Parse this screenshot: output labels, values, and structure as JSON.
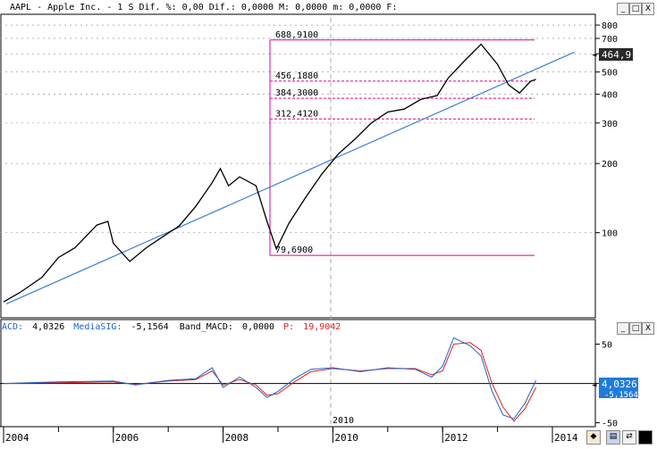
{
  "header": {
    "title": "AAPL - Apple Inc. -  1 S Dif. %: 0,00 Dif.: 0,0000 M: 0,0000 m: 0,0000 F:",
    "window_buttons": [
      "_",
      "□",
      "X"
    ]
  },
  "colors": {
    "price": "#000000",
    "trendline": "#3b7fd4",
    "levels": "#e0008a",
    "macd_blue": "#1f63c8",
    "macd_red": "#e02020",
    "grid": "#9a9a9a",
    "badge_bg": "#1f7bd8"
  },
  "chart_data": [
    {
      "type": "line",
      "title": "AAPL - Apple Inc.",
      "y_scale": "log",
      "ylim": [
        45,
        860
      ],
      "y_ticks": [
        "800",
        "700",
        "600",
        "500",
        "400",
        "300",
        "200",
        "100"
      ],
      "x_ticks": [
        "2004",
        "2006",
        "2008",
        "2010",
        "2012",
        "2014"
      ],
      "last_value_label": "464,9",
      "series": [
        {
          "x": [
            2004.0,
            2004.3,
            2004.7,
            2005.0,
            2005.3,
            2005.7,
            2005.9,
            2006.0,
            2006.3,
            2006.6,
            2006.9,
            2007.2,
            2007.5,
            2007.8,
            2007.95,
            2008.1,
            2008.3,
            2008.6,
            2008.8,
            2008.97,
            2009.2,
            2009.5,
            2009.8,
            2010.1,
            2010.4,
            2010.7,
            2011.0,
            2011.3,
            2011.6,
            2011.9,
            2012.1,
            2012.4,
            2012.7,
            2013.0,
            2013.2,
            2013.4,
            2013.6,
            2013.7
          ],
          "y": [
            50,
            55,
            64,
            78,
            86,
            108,
            112,
            90,
            75,
            86,
            96,
            107,
            130,
            165,
            190,
            160,
            175,
            160,
            112,
            85,
            110,
            142,
            180,
            220,
            255,
            300,
            335,
            345,
            380,
            395,
            470,
            560,
            660,
            540,
            440,
            405,
            455,
            465
          ]
        }
      ]
    },
    {
      "type": "line",
      "title": "MACD",
      "ylim": [
        -55,
        62
      ],
      "y_ticks": [
        "50",
        "0",
        "-50"
      ],
      "x_ticks": [
        "2004",
        "2006",
        "2008",
        "2010",
        "2012",
        "2014"
      ],
      "readout": {
        "macd_label": "ACD:",
        "macd_value": "4,0326",
        "signal_label": "MediaSIG:",
        "signal_value": "-5,1564",
        "band_label": "Band_MACD:",
        "band_value": "0,0000",
        "p_label": "P:",
        "p_value": "19,9042"
      },
      "badge_value": "4,0326",
      "badge_value_2": "-5,1564",
      "series": [
        {
          "x": [
            2004.0,
            2005.0,
            2006.0,
            2006.4,
            2007.0,
            2007.5,
            2007.8,
            2008.0,
            2008.3,
            2008.6,
            2008.8,
            2009.0,
            2009.3,
            2009.6,
            2010.0,
            2010.5,
            2011.0,
            2011.5,
            2011.8,
            2012.0,
            2012.2,
            2012.5,
            2012.7,
            2012.9,
            2013.1,
            2013.3,
            2013.5,
            2013.7
          ],
          "y": [
            0,
            2,
            3,
            -2,
            4,
            6,
            20,
            -5,
            8,
            -5,
            -18,
            -10,
            6,
            18,
            20,
            15,
            20,
            18,
            8,
            22,
            58,
            48,
            35,
            -10,
            -40,
            -45,
            -25,
            4
          ]
        },
        {
          "x": [
            2004.0,
            2005.0,
            2006.0,
            2006.4,
            2007.0,
            2007.5,
            2007.8,
            2008.0,
            2008.3,
            2008.6,
            2008.8,
            2009.0,
            2009.3,
            2009.6,
            2010.0,
            2010.5,
            2011.0,
            2011.5,
            2011.8,
            2012.0,
            2012.2,
            2012.5,
            2012.7,
            2012.9,
            2013.1,
            2013.3,
            2013.5,
            2013.7
          ],
          "y": [
            0,
            1,
            2,
            -1,
            3,
            5,
            16,
            -2,
            5,
            -2,
            -15,
            -13,
            2,
            15,
            19,
            16,
            19,
            19,
            11,
            16,
            50,
            52,
            42,
            0,
            -30,
            -48,
            -32,
            -5
          ]
        }
      ]
    }
  ],
  "price_levels": [
    {
      "value": 688.91,
      "label": "688,9100",
      "style": "solid"
    },
    {
      "value": 456.188,
      "label": "456,1880",
      "style": "dashed"
    },
    {
      "value": 384.3,
      "label": "384,3000",
      "style": "dashed"
    },
    {
      "value": 312.412,
      "label": "312,4120",
      "style": "dashed"
    },
    {
      "value": 79.69,
      "label": "79,6900",
      "style": "solid"
    }
  ],
  "cursor_label": "2010",
  "toolbar_icons": [
    "chart-settings-icon",
    "save-icon",
    "refresh-icon",
    "panel-icon"
  ]
}
